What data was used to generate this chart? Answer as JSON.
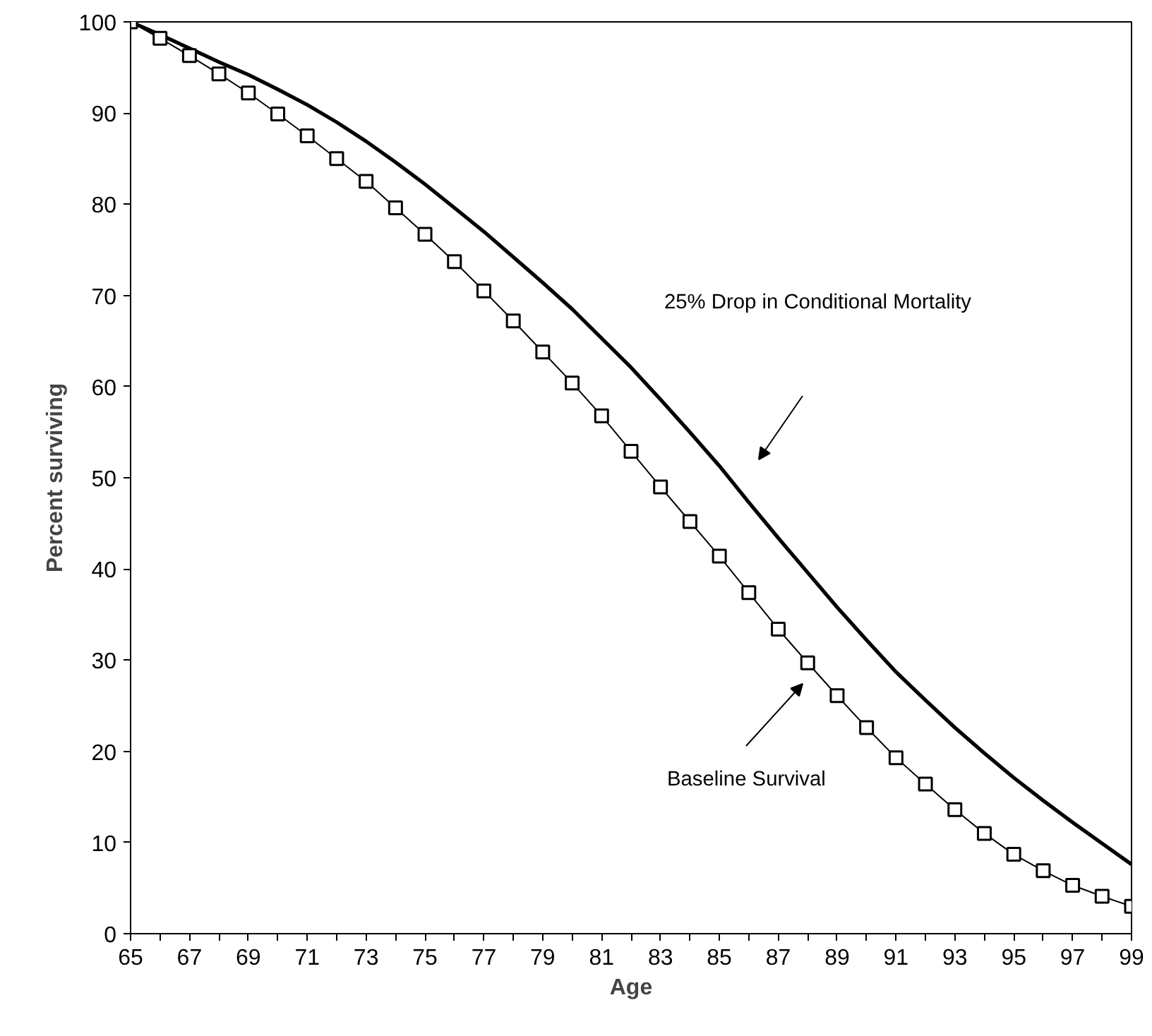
{
  "chart_data": {
    "type": "line",
    "xlabel": "Age",
    "ylabel": "Percent surviving",
    "x": [
      65,
      66,
      67,
      68,
      69,
      70,
      71,
      72,
      73,
      74,
      75,
      76,
      77,
      78,
      79,
      80,
      81,
      82,
      83,
      84,
      85,
      86,
      87,
      88,
      89,
      90,
      91,
      92,
      93,
      94,
      95,
      96,
      97,
      98,
      99
    ],
    "series": [
      {
        "name": "25% Drop in Conditional Mortality",
        "color": "#000000",
        "marker": "none",
        "values": [
          100,
          98.6,
          97.1,
          95.6,
          94.2,
          92.6,
          90.9,
          89.0,
          86.9,
          84.6,
          82.2,
          79.6,
          77.0,
          74.2,
          71.4,
          68.5,
          65.3,
          62.1,
          58.6,
          55.0,
          51.3,
          47.3,
          43.4,
          39.6,
          35.8,
          32.2,
          28.7,
          25.6,
          22.6,
          19.8,
          17.1,
          14.6,
          12.2,
          9.9,
          7.6
        ]
      },
      {
        "name": "Baseline Survival",
        "color": "#000000",
        "marker": "square",
        "values": [
          100,
          98.2,
          96.3,
          94.3,
          92.2,
          89.9,
          87.5,
          85.0,
          82.5,
          79.6,
          76.7,
          73.7,
          70.5,
          67.2,
          63.8,
          60.4,
          56.8,
          52.9,
          49.0,
          45.2,
          41.4,
          37.4,
          33.4,
          29.7,
          26.1,
          22.6,
          19.3,
          16.4,
          13.6,
          11.0,
          8.7,
          6.9,
          5.3,
          4.1,
          3.0
        ]
      }
    ],
    "xlim": [
      65,
      99
    ],
    "xticks": [
      65,
      {
        "value": 66,
        "label": null
      },
      67,
      {
        "value": 68,
        "label": null
      },
      69,
      {
        "value": 70,
        "label": null
      },
      71,
      {
        "value": 72,
        "label": null
      },
      73,
      {
        "value": 74,
        "label": null
      },
      75,
      {
        "value": 76,
        "label": null
      },
      77,
      {
        "value": 78,
        "label": null
      },
      79,
      {
        "value": 80,
        "label": null
      },
      81,
      {
        "value": 82,
        "label": null
      },
      83,
      {
        "value": 84,
        "label": null
      },
      85,
      {
        "value": 86,
        "label": null
      },
      87,
      {
        "value": 88,
        "label": null
      },
      89,
      {
        "value": 90,
        "label": null
      },
      91,
      {
        "value": 92,
        "label": null
      },
      93,
      {
        "value": 94,
        "label": null
      },
      95,
      {
        "value": 96,
        "label": null
      },
      97,
      {
        "value": 98,
        "label": null
      },
      99
    ],
    "ylim": [
      0,
      100
    ],
    "yticks": [
      0,
      10,
      20,
      30,
      40,
      50,
      60,
      70,
      80,
      90,
      100
    ],
    "grid": false,
    "legend": false,
    "line_style": "solid"
  }
}
